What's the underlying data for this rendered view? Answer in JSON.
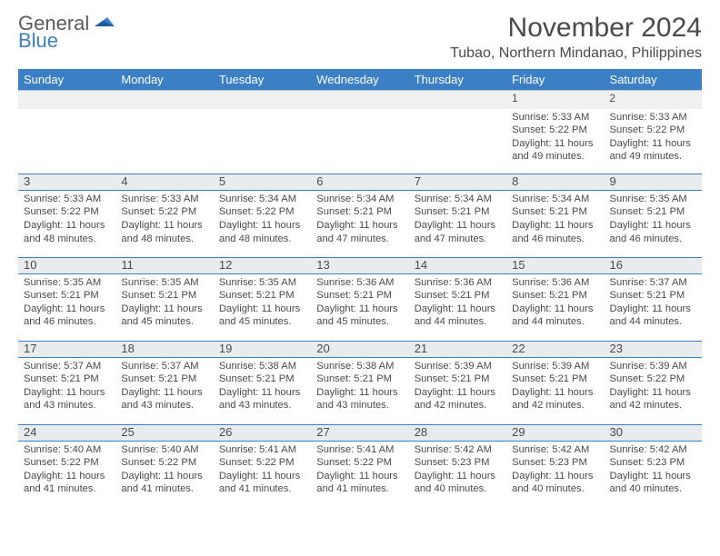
{
  "logo": {
    "textGeneral": "General",
    "textBlue": "Blue"
  },
  "title": "November 2024",
  "location": "Tubao, Northern Mindanao, Philippines",
  "headerBg": "#3b7fc4",
  "weekdays": [
    "Sunday",
    "Monday",
    "Tuesday",
    "Wednesday",
    "Thursday",
    "Friday",
    "Saturday"
  ],
  "weeks": [
    [
      null,
      null,
      null,
      null,
      null,
      {
        "d": "1",
        "sr": "5:33 AM",
        "ss": "5:22 PM",
        "dl": "11 hours and 49 minutes."
      },
      {
        "d": "2",
        "sr": "5:33 AM",
        "ss": "5:22 PM",
        "dl": "11 hours and 49 minutes."
      }
    ],
    [
      {
        "d": "3",
        "sr": "5:33 AM",
        "ss": "5:22 PM",
        "dl": "11 hours and 48 minutes."
      },
      {
        "d": "4",
        "sr": "5:33 AM",
        "ss": "5:22 PM",
        "dl": "11 hours and 48 minutes."
      },
      {
        "d": "5",
        "sr": "5:34 AM",
        "ss": "5:22 PM",
        "dl": "11 hours and 48 minutes."
      },
      {
        "d": "6",
        "sr": "5:34 AM",
        "ss": "5:21 PM",
        "dl": "11 hours and 47 minutes."
      },
      {
        "d": "7",
        "sr": "5:34 AM",
        "ss": "5:21 PM",
        "dl": "11 hours and 47 minutes."
      },
      {
        "d": "8",
        "sr": "5:34 AM",
        "ss": "5:21 PM",
        "dl": "11 hours and 46 minutes."
      },
      {
        "d": "9",
        "sr": "5:35 AM",
        "ss": "5:21 PM",
        "dl": "11 hours and 46 minutes."
      }
    ],
    [
      {
        "d": "10",
        "sr": "5:35 AM",
        "ss": "5:21 PM",
        "dl": "11 hours and 46 minutes."
      },
      {
        "d": "11",
        "sr": "5:35 AM",
        "ss": "5:21 PM",
        "dl": "11 hours and 45 minutes."
      },
      {
        "d": "12",
        "sr": "5:35 AM",
        "ss": "5:21 PM",
        "dl": "11 hours and 45 minutes."
      },
      {
        "d": "13",
        "sr": "5:36 AM",
        "ss": "5:21 PM",
        "dl": "11 hours and 45 minutes."
      },
      {
        "d": "14",
        "sr": "5:36 AM",
        "ss": "5:21 PM",
        "dl": "11 hours and 44 minutes."
      },
      {
        "d": "15",
        "sr": "5:36 AM",
        "ss": "5:21 PM",
        "dl": "11 hours and 44 minutes."
      },
      {
        "d": "16",
        "sr": "5:37 AM",
        "ss": "5:21 PM",
        "dl": "11 hours and 44 minutes."
      }
    ],
    [
      {
        "d": "17",
        "sr": "5:37 AM",
        "ss": "5:21 PM",
        "dl": "11 hours and 43 minutes."
      },
      {
        "d": "18",
        "sr": "5:37 AM",
        "ss": "5:21 PM",
        "dl": "11 hours and 43 minutes."
      },
      {
        "d": "19",
        "sr": "5:38 AM",
        "ss": "5:21 PM",
        "dl": "11 hours and 43 minutes."
      },
      {
        "d": "20",
        "sr": "5:38 AM",
        "ss": "5:21 PM",
        "dl": "11 hours and 43 minutes."
      },
      {
        "d": "21",
        "sr": "5:39 AM",
        "ss": "5:21 PM",
        "dl": "11 hours and 42 minutes."
      },
      {
        "d": "22",
        "sr": "5:39 AM",
        "ss": "5:21 PM",
        "dl": "11 hours and 42 minutes."
      },
      {
        "d": "23",
        "sr": "5:39 AM",
        "ss": "5:22 PM",
        "dl": "11 hours and 42 minutes."
      }
    ],
    [
      {
        "d": "24",
        "sr": "5:40 AM",
        "ss": "5:22 PM",
        "dl": "11 hours and 41 minutes."
      },
      {
        "d": "25",
        "sr": "5:40 AM",
        "ss": "5:22 PM",
        "dl": "11 hours and 41 minutes."
      },
      {
        "d": "26",
        "sr": "5:41 AM",
        "ss": "5:22 PM",
        "dl": "11 hours and 41 minutes."
      },
      {
        "d": "27",
        "sr": "5:41 AM",
        "ss": "5:22 PM",
        "dl": "11 hours and 41 minutes."
      },
      {
        "d": "28",
        "sr": "5:42 AM",
        "ss": "5:23 PM",
        "dl": "11 hours and 40 minutes."
      },
      {
        "d": "29",
        "sr": "5:42 AM",
        "ss": "5:23 PM",
        "dl": "11 hours and 40 minutes."
      },
      {
        "d": "30",
        "sr": "5:42 AM",
        "ss": "5:23 PM",
        "dl": "11 hours and 40 minutes."
      }
    ]
  ],
  "labels": {
    "sunrise": "Sunrise: ",
    "sunset": "Sunset: ",
    "daylight": "Daylight: "
  }
}
